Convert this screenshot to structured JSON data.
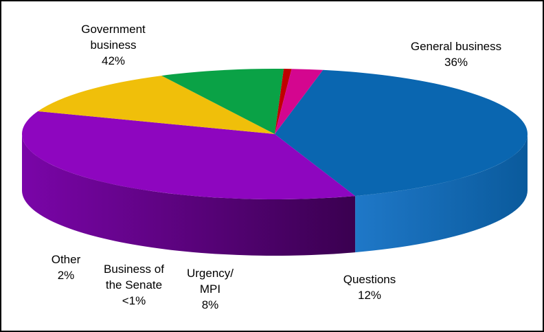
{
  "chart_data": {
    "type": "pie",
    "style": "3d-exploded-none",
    "slices": [
      {
        "label": [
          "Government",
          "business"
        ],
        "value_text": "42%",
        "value": 42,
        "color": "#0a66b0"
      },
      {
        "label": [
          "General business"
        ],
        "value_text": "36%",
        "value": 36,
        "color": "#8e06bf"
      },
      {
        "label": [
          "Questions"
        ],
        "value_text": "12%",
        "value": 12,
        "color": "#f0bf0a"
      },
      {
        "label": [
          "Urgency/",
          "MPI"
        ],
        "value_text": "8%",
        "value": 8,
        "color": "#0aa246"
      },
      {
        "label": [
          "Business of",
          "the Senate"
        ],
        "value_text": "<1%",
        "value": 0.5,
        "color": "#c00000"
      },
      {
        "label": [
          "Other"
        ],
        "value_text": "2%",
        "value": 2,
        "color": "#d4068f"
      }
    ]
  }
}
